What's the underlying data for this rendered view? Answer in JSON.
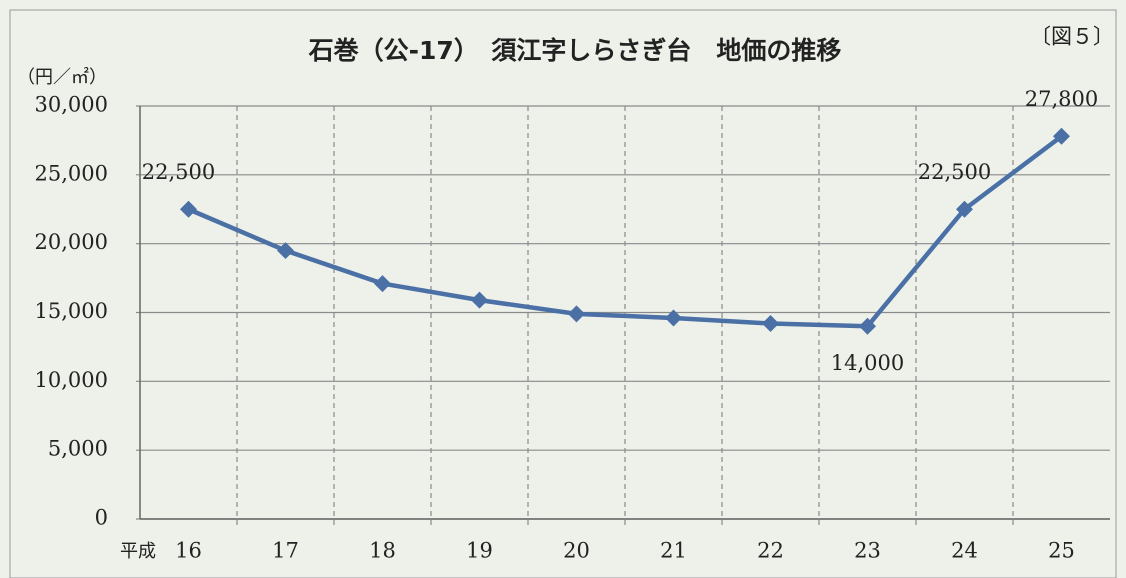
{
  "chart_data": {
    "type": "line",
    "title": "石巻（公-17）　須江字しらさぎ台　地価の推移",
    "figure_label": "〔図５〕",
    "y_axis_label": "（円／㎡）",
    "x_axis_prefix": "平成",
    "categories": [
      "16",
      "17",
      "18",
      "19",
      "20",
      "21",
      "22",
      "23",
      "24",
      "25"
    ],
    "series": [
      {
        "name": "地価",
        "color": "#4a70a6",
        "values": [
          22500,
          19500,
          17100,
          15900,
          14900,
          14600,
          14200,
          14000,
          22500,
          27800
        ],
        "value_labels": [
          "22,500",
          null,
          null,
          null,
          null,
          null,
          null,
          "14,000",
          "22,500",
          "27,800"
        ]
      }
    ],
    "ylim": [
      0,
      30000
    ],
    "yticks": [
      0,
      {
        "value": 5000,
        "label": "5,000"
      },
      {
        "value": 10000,
        "label": "10,000"
      },
      {
        "value": 15000,
        "label": "15,000"
      },
      {
        "value": 20000,
        "label": "20,000"
      },
      {
        "value": 25000,
        "label": "25,000"
      },
      {
        "value": 30000,
        "label": "30,000"
      }
    ],
    "grid": true
  }
}
